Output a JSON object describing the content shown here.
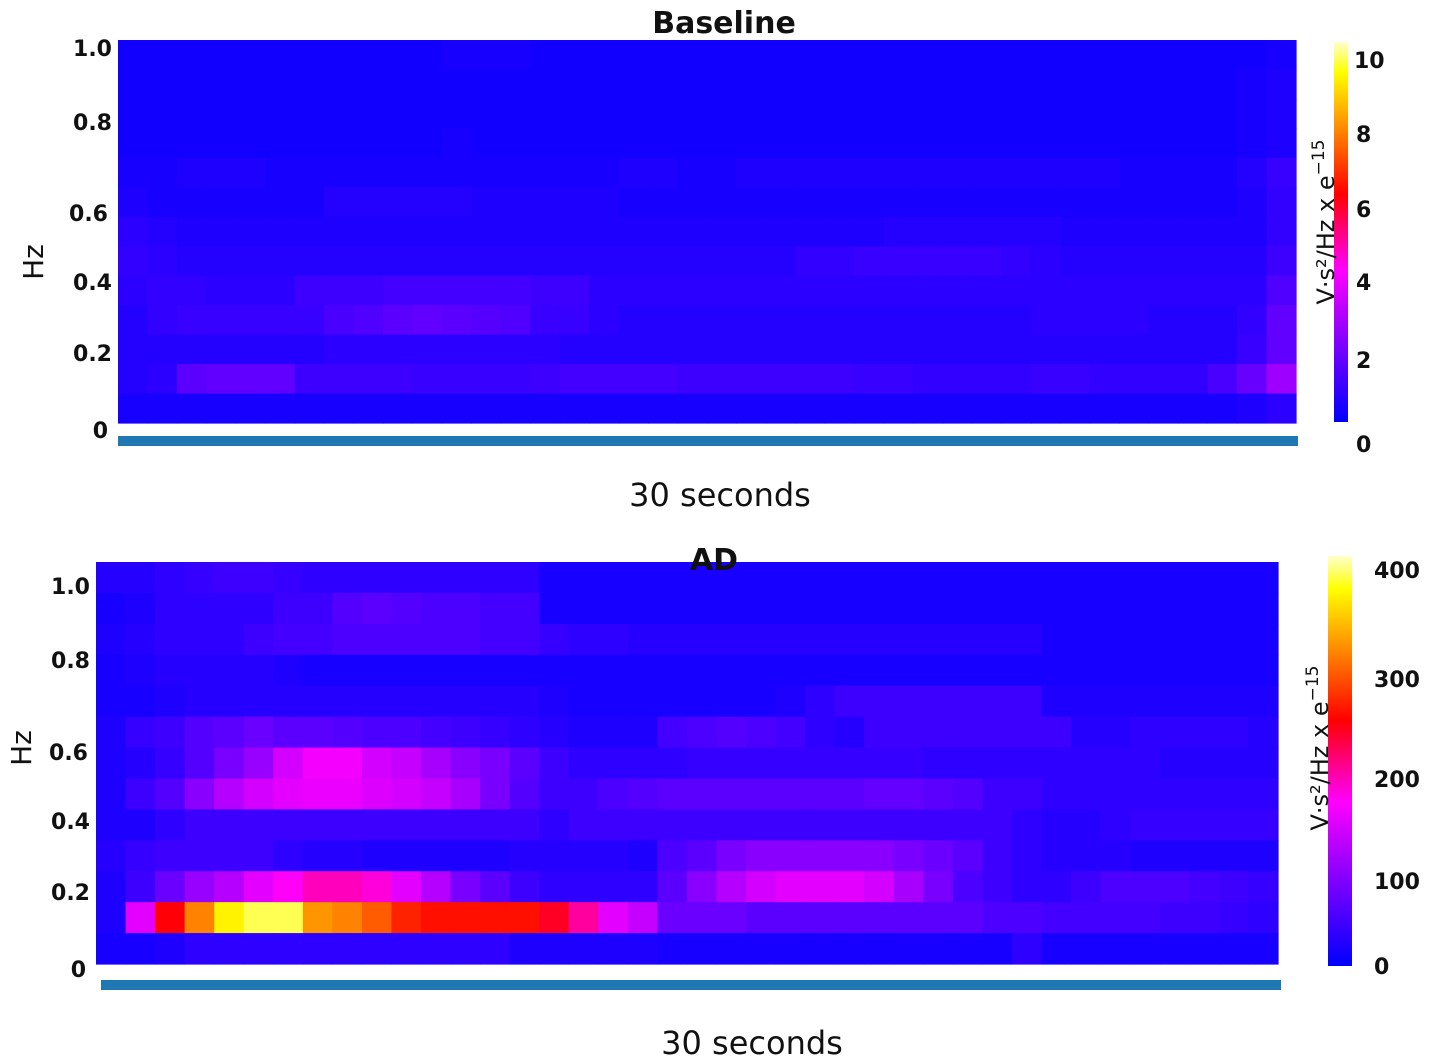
{
  "chart_data": [
    {
      "type": "heatmap",
      "title": "Baseline",
      "ylabel": "Hz",
      "xlabel": "30 seconds",
      "y_ticks": [
        "1.0",
        "0.8",
        "0.6",
        "0.4",
        "0.2",
        "0"
      ],
      "ylim": [
        0,
        1.0
      ],
      "colorbar": {
        "label_main": "V·s²/Hz x e",
        "label_exp": "−15",
        "ticks": [
          "10",
          "8",
          "6",
          "4",
          "2",
          "0"
        ],
        "range": [
          0,
          10.5
        ]
      },
      "colormap": [
        "#0000ff",
        "#ff00ff",
        "#ff0000",
        "#ffa000",
        "#ffff00",
        "#ffffcc"
      ],
      "grid": false,
      "cols": 40,
      "rows": 13,
      "values": [
        [
          0.3,
          0.3,
          0.3,
          0.3,
          0.3,
          0.3,
          0.3,
          0.3,
          0.3,
          0.3,
          0.3,
          0.4,
          0.4,
          0.4,
          0.3,
          0.3,
          0.3,
          0.3,
          0.3,
          0.3,
          0.3,
          0.3,
          0.3,
          0.3,
          0.3,
          0.3,
          0.3,
          0.3,
          0.3,
          0.3,
          0.3,
          0.3,
          0.3,
          0.3,
          0.3,
          0.3,
          0.3,
          0.3,
          0.3,
          0.4
        ],
        [
          0.3,
          0.3,
          0.3,
          0.3,
          0.3,
          0.3,
          0.3,
          0.3,
          0.3,
          0.3,
          0.3,
          0.3,
          0.3,
          0.3,
          0.3,
          0.3,
          0.3,
          0.3,
          0.3,
          0.3,
          0.3,
          0.3,
          0.3,
          0.3,
          0.3,
          0.3,
          0.3,
          0.3,
          0.3,
          0.3,
          0.3,
          0.3,
          0.3,
          0.3,
          0.3,
          0.3,
          0.3,
          0.3,
          0.4,
          0.5
        ],
        [
          0.3,
          0.3,
          0.3,
          0.3,
          0.3,
          0.3,
          0.3,
          0.3,
          0.3,
          0.3,
          0.3,
          0.3,
          0.3,
          0.3,
          0.3,
          0.3,
          0.3,
          0.3,
          0.3,
          0.3,
          0.3,
          0.3,
          0.3,
          0.3,
          0.3,
          0.3,
          0.3,
          0.3,
          0.3,
          0.3,
          0.3,
          0.3,
          0.3,
          0.3,
          0.3,
          0.3,
          0.3,
          0.3,
          0.4,
          0.5
        ],
        [
          0.3,
          0.3,
          0.3,
          0.3,
          0.3,
          0.3,
          0.3,
          0.3,
          0.3,
          0.3,
          0.3,
          0.4,
          0.3,
          0.3,
          0.3,
          0.3,
          0.3,
          0.3,
          0.3,
          0.3,
          0.3,
          0.3,
          0.3,
          0.3,
          0.3,
          0.3,
          0.3,
          0.3,
          0.3,
          0.3,
          0.3,
          0.3,
          0.3,
          0.3,
          0.3,
          0.3,
          0.3,
          0.3,
          0.4,
          0.5
        ],
        [
          0.4,
          0.4,
          0.5,
          0.5,
          0.5,
          0.4,
          0.4,
          0.4,
          0.4,
          0.4,
          0.4,
          0.4,
          0.4,
          0.4,
          0.4,
          0.4,
          0.4,
          0.5,
          0.5,
          0.4,
          0.4,
          0.5,
          0.5,
          0.5,
          0.5,
          0.5,
          0.5,
          0.5,
          0.5,
          0.5,
          0.5,
          0.5,
          0.5,
          0.5,
          0.4,
          0.4,
          0.4,
          0.4,
          0.6,
          0.9
        ],
        [
          0.5,
          0.4,
          0.4,
          0.4,
          0.4,
          0.4,
          0.4,
          0.6,
          0.6,
          0.6,
          0.6,
          0.6,
          0.5,
          0.5,
          0.5,
          0.5,
          0.5,
          0.4,
          0.4,
          0.4,
          0.4,
          0.4,
          0.4,
          0.4,
          0.4,
          0.4,
          0.4,
          0.4,
          0.4,
          0.4,
          0.4,
          0.4,
          0.4,
          0.4,
          0.4,
          0.4,
          0.4,
          0.4,
          0.5,
          0.8
        ],
        [
          0.7,
          0.6,
          0.5,
          0.5,
          0.5,
          0.5,
          0.5,
          0.5,
          0.5,
          0.5,
          0.5,
          0.5,
          0.5,
          0.5,
          0.5,
          0.5,
          0.5,
          0.5,
          0.5,
          0.5,
          0.5,
          0.5,
          0.5,
          0.5,
          0.5,
          0.5,
          0.6,
          0.6,
          0.6,
          0.6,
          0.6,
          0.6,
          0.5,
          0.5,
          0.5,
          0.5,
          0.5,
          0.5,
          0.5,
          0.8
        ],
        [
          0.8,
          0.7,
          0.6,
          0.6,
          0.6,
          0.6,
          0.6,
          0.6,
          0.6,
          0.6,
          0.6,
          0.6,
          0.6,
          0.6,
          0.6,
          0.6,
          0.6,
          0.6,
          0.6,
          0.6,
          0.6,
          0.6,
          0.6,
          0.8,
          0.8,
          0.9,
          0.9,
          0.9,
          0.9,
          0.9,
          0.8,
          0.7,
          0.6,
          0.6,
          0.6,
          0.6,
          0.6,
          0.6,
          0.6,
          1.0
        ],
        [
          0.7,
          0.8,
          0.8,
          0.7,
          0.7,
          0.7,
          1.0,
          1.0,
          1.0,
          1.1,
          1.1,
          1.1,
          1.1,
          1.1,
          1.0,
          1.0,
          0.7,
          0.7,
          0.7,
          0.7,
          0.7,
          0.7,
          0.7,
          0.7,
          0.7,
          0.7,
          0.7,
          0.7,
          0.7,
          0.7,
          0.7,
          0.7,
          0.7,
          0.7,
          0.7,
          0.7,
          0.7,
          0.7,
          0.7,
          1.3
        ],
        [
          0.6,
          0.8,
          0.9,
          0.9,
          0.9,
          0.9,
          0.9,
          1.2,
          1.3,
          1.5,
          1.6,
          1.5,
          1.4,
          1.3,
          0.9,
          0.9,
          0.7,
          0.6,
          0.6,
          0.6,
          0.6,
          0.6,
          0.6,
          0.6,
          0.6,
          0.6,
          0.6,
          0.6,
          0.6,
          0.6,
          0.6,
          0.7,
          0.7,
          0.7,
          0.7,
          0.6,
          0.6,
          0.6,
          0.8,
          1.6
        ],
        [
          0.6,
          0.6,
          0.6,
          0.6,
          0.6,
          0.6,
          0.6,
          0.7,
          0.7,
          0.7,
          0.7,
          0.7,
          0.7,
          0.7,
          0.7,
          0.6,
          0.6,
          0.6,
          0.6,
          0.6,
          0.6,
          0.6,
          0.6,
          0.6,
          0.6,
          0.6,
          0.6,
          0.6,
          0.6,
          0.6,
          0.6,
          0.6,
          0.6,
          0.6,
          0.6,
          0.6,
          0.6,
          0.6,
          0.9,
          1.6
        ],
        [
          0.6,
          0.7,
          1.5,
          1.6,
          1.6,
          1.6,
          1.0,
          1.0,
          1.0,
          1.0,
          0.9,
          0.9,
          0.9,
          0.9,
          1.0,
          1.1,
          1.1,
          1.1,
          1.1,
          1.0,
          1.0,
          1.0,
          1.0,
          1.0,
          1.0,
          0.9,
          0.9,
          0.8,
          0.8,
          0.8,
          0.8,
          0.9,
          0.9,
          0.8,
          0.8,
          0.8,
          0.8,
          1.2,
          1.7,
          2.6
        ],
        [
          0.4,
          0.4,
          0.4,
          0.4,
          0.4,
          0.4,
          0.4,
          0.4,
          0.4,
          0.4,
          0.4,
          0.4,
          0.4,
          0.4,
          0.4,
          0.4,
          0.4,
          0.4,
          0.4,
          0.4,
          0.4,
          0.4,
          0.4,
          0.4,
          0.4,
          0.4,
          0.4,
          0.4,
          0.4,
          0.4,
          0.4,
          0.4,
          0.4,
          0.4,
          0.4,
          0.4,
          0.4,
          0.4,
          0.5,
          0.7
        ]
      ]
    },
    {
      "type": "heatmap",
      "title": "AD",
      "ylabel": "Hz",
      "xlabel": "30 seconds",
      "y_ticks": [
        "1.0",
        "0.8",
        "0.6",
        "0.4",
        "0.2",
        "0"
      ],
      "ylim": [
        0,
        1.0
      ],
      "colorbar": {
        "label_main": "V·s²/Hz x e",
        "label_exp": "−15",
        "ticks": [
          "400",
          "300",
          "200",
          "100",
          "0"
        ],
        "range": [
          0,
          420
        ]
      },
      "colormap": [
        "#0000ff",
        "#ff00ff",
        "#ff0000",
        "#ffa000",
        "#ffff00",
        "#ffffcc"
      ],
      "grid": false,
      "cols": 40,
      "rows": 13,
      "values": [
        [
          25,
          25,
          30,
          35,
          40,
          40,
          35,
          30,
          30,
          30,
          30,
          30,
          30,
          30,
          30,
          15,
          15,
          15,
          15,
          15,
          15,
          15,
          15,
          15,
          15,
          15,
          15,
          15,
          15,
          15,
          15,
          15,
          15,
          15,
          15,
          15,
          15,
          15,
          15,
          15
        ],
        [
          15,
          20,
          30,
          30,
          30,
          30,
          40,
          40,
          55,
          60,
          55,
          50,
          50,
          45,
          45,
          15,
          15,
          15,
          15,
          15,
          15,
          15,
          15,
          15,
          15,
          15,
          15,
          15,
          15,
          15,
          15,
          15,
          15,
          15,
          15,
          15,
          15,
          15,
          15,
          15
        ],
        [
          20,
          25,
          30,
          30,
          30,
          40,
          45,
          45,
          50,
          50,
          50,
          50,
          50,
          45,
          45,
          35,
          30,
          30,
          25,
          25,
          25,
          25,
          25,
          25,
          25,
          25,
          25,
          25,
          25,
          25,
          25,
          25,
          15,
          15,
          15,
          15,
          15,
          15,
          15,
          15
        ],
        [
          15,
          20,
          25,
          25,
          25,
          25,
          20,
          15,
          15,
          15,
          15,
          15,
          15,
          15,
          15,
          15,
          15,
          15,
          15,
          15,
          15,
          15,
          15,
          15,
          15,
          15,
          15,
          15,
          15,
          15,
          15,
          15,
          15,
          15,
          15,
          15,
          15,
          15,
          15,
          15
        ],
        [
          15,
          15,
          20,
          25,
          25,
          25,
          25,
          25,
          25,
          25,
          25,
          25,
          25,
          25,
          25,
          20,
          15,
          15,
          15,
          15,
          15,
          15,
          15,
          20,
          30,
          40,
          40,
          40,
          40,
          40,
          40,
          40,
          20,
          20,
          20,
          20,
          20,
          20,
          20,
          20
        ],
        [
          20,
          35,
          40,
          55,
          60,
          70,
          60,
          60,
          55,
          50,
          50,
          45,
          40,
          35,
          30,
          25,
          20,
          20,
          20,
          45,
          50,
          55,
          50,
          45,
          30,
          25,
          40,
          40,
          40,
          40,
          40,
          40,
          40,
          25,
          25,
          30,
          30,
          30,
          30,
          25
        ],
        [
          20,
          25,
          35,
          55,
          80,
          100,
          140,
          160,
          160,
          140,
          130,
          110,
          90,
          80,
          60,
          40,
          30,
          30,
          30,
          30,
          35,
          35,
          35,
          35,
          35,
          35,
          35,
          35,
          30,
          30,
          30,
          30,
          30,
          30,
          30,
          30,
          25,
          25,
          25,
          25
        ],
        [
          20,
          40,
          55,
          90,
          120,
          140,
          150,
          155,
          155,
          145,
          140,
          130,
          110,
          80,
          55,
          40,
          40,
          50,
          55,
          60,
          60,
          60,
          60,
          60,
          60,
          60,
          65,
          65,
          60,
          55,
          40,
          40,
          30,
          30,
          30,
          30,
          30,
          30,
          30,
          30
        ],
        [
          20,
          20,
          30,
          40,
          40,
          40,
          40,
          40,
          40,
          40,
          40,
          40,
          40,
          40,
          40,
          30,
          40,
          40,
          40,
          40,
          40,
          40,
          40,
          40,
          40,
          40,
          40,
          40,
          40,
          40,
          40,
          30,
          25,
          25,
          30,
          35,
          35,
          35,
          35,
          35
        ],
        [
          25,
          35,
          40,
          40,
          40,
          40,
          30,
          25,
          25,
          20,
          20,
          20,
          20,
          20,
          25,
          25,
          25,
          25,
          20,
          50,
          60,
          80,
          90,
          90,
          90,
          90,
          90,
          80,
          70,
          60,
          40,
          30,
          25,
          25,
          25,
          20,
          20,
          20,
          20,
          20
        ],
        [
          20,
          40,
          70,
          100,
          120,
          150,
          170,
          190,
          190,
          180,
          150,
          120,
          80,
          60,
          40,
          30,
          30,
          30,
          30,
          60,
          90,
          120,
          140,
          150,
          150,
          150,
          140,
          110,
          80,
          50,
          40,
          30,
          30,
          40,
          50,
          50,
          50,
          45,
          40,
          35
        ],
        [
          20,
          150,
          250,
          320,
          380,
          400,
          400,
          330,
          320,
          300,
          270,
          260,
          260,
          260,
          260,
          240,
          200,
          150,
          130,
          70,
          70,
          70,
          60,
          60,
          60,
          60,
          60,
          60,
          60,
          60,
          50,
          50,
          45,
          45,
          45,
          45,
          40,
          40,
          35,
          30
        ],
        [
          15,
          15,
          20,
          30,
          30,
          30,
          30,
          30,
          30,
          30,
          30,
          30,
          30,
          30,
          20,
          20,
          20,
          20,
          20,
          15,
          15,
          15,
          15,
          15,
          15,
          15,
          15,
          15,
          15,
          15,
          15,
          30,
          15,
          15,
          15,
          15,
          15,
          15,
          15,
          15
        ]
      ]
    }
  ]
}
